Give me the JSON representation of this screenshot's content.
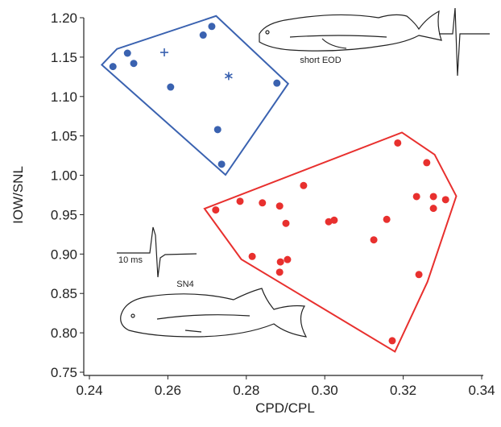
{
  "chart_data": {
    "type": "scatter",
    "xlabel": "CPD/CPL",
    "ylabel": "IOW/SNL",
    "xlim": [
      0.24,
      0.34
    ],
    "ylim": [
      0.75,
      1.2
    ],
    "xticks": [
      {
        "value": 0.24,
        "label": "0.24"
      },
      {
        "value": 0.26,
        "label": "0.26"
      },
      {
        "value": 0.28,
        "label": "0.28"
      },
      {
        "value": 0.3,
        "label": "0.30"
      },
      {
        "value": 0.32,
        "label": "0.32"
      },
      {
        "value": 0.34,
        "label": "0.34"
      }
    ],
    "yticks": [
      {
        "value": 0.75,
        "label": "0.75"
      },
      {
        "value": 0.8,
        "label": "0.80"
      },
      {
        "value": 0.85,
        "label": "0.85"
      },
      {
        "value": 0.9,
        "label": "0.90"
      },
      {
        "value": 0.95,
        "label": "0.95"
      },
      {
        "value": 1.0,
        "label": "1.00"
      },
      {
        "value": 1.05,
        "label": "1.05"
      },
      {
        "value": 1.1,
        "label": "1.10"
      },
      {
        "value": 1.15,
        "label": "1.15"
      },
      {
        "value": 1.2,
        "label": "1.20"
      }
    ],
    "annotations": [
      "short EOD",
      "SN4",
      "10 ms"
    ],
    "series": [
      {
        "color": "#3a62b0",
        "marker": "circle",
        "hull": true,
        "x": [
          0.246,
          0.2497,
          0.2513,
          0.2607,
          0.269,
          0.2712,
          0.2878,
          0.2727,
          0.2737
        ],
        "values": [
          1.138,
          1.155,
          1.142,
          1.112,
          1.178,
          1.189,
          1.117,
          1.058,
          1.014
        ]
      },
      {
        "color": "#3a62b0",
        "marker": "plus",
        "x": [
          0.2591
        ],
        "values": [
          1.156
        ]
      },
      {
        "color": "#3a62b0",
        "marker": "star",
        "x": [
          0.2755
        ],
        "values": [
          1.126
        ]
      },
      {
        "color": "#e8302e",
        "marker": "circle",
        "hull": true,
        "x": [
          0.2722,
          0.2784,
          0.2841,
          0.2885,
          0.2946,
          0.2901,
          0.2815,
          0.2887,
          0.2905,
          0.2885,
          0.301,
          0.3024,
          0.3125,
          0.3158,
          0.3186,
          0.3234,
          0.326,
          0.3277,
          0.3277,
          0.3308,
          0.324,
          0.3172
        ],
        "values": [
          0.956,
          0.967,
          0.965,
          0.961,
          0.987,
          0.939,
          0.897,
          0.89,
          0.893,
          0.877,
          0.941,
          0.943,
          0.918,
          0.944,
          1.041,
          0.973,
          1.016,
          0.973,
          0.958,
          0.969,
          0.874,
          0.79
        ]
      }
    ]
  }
}
